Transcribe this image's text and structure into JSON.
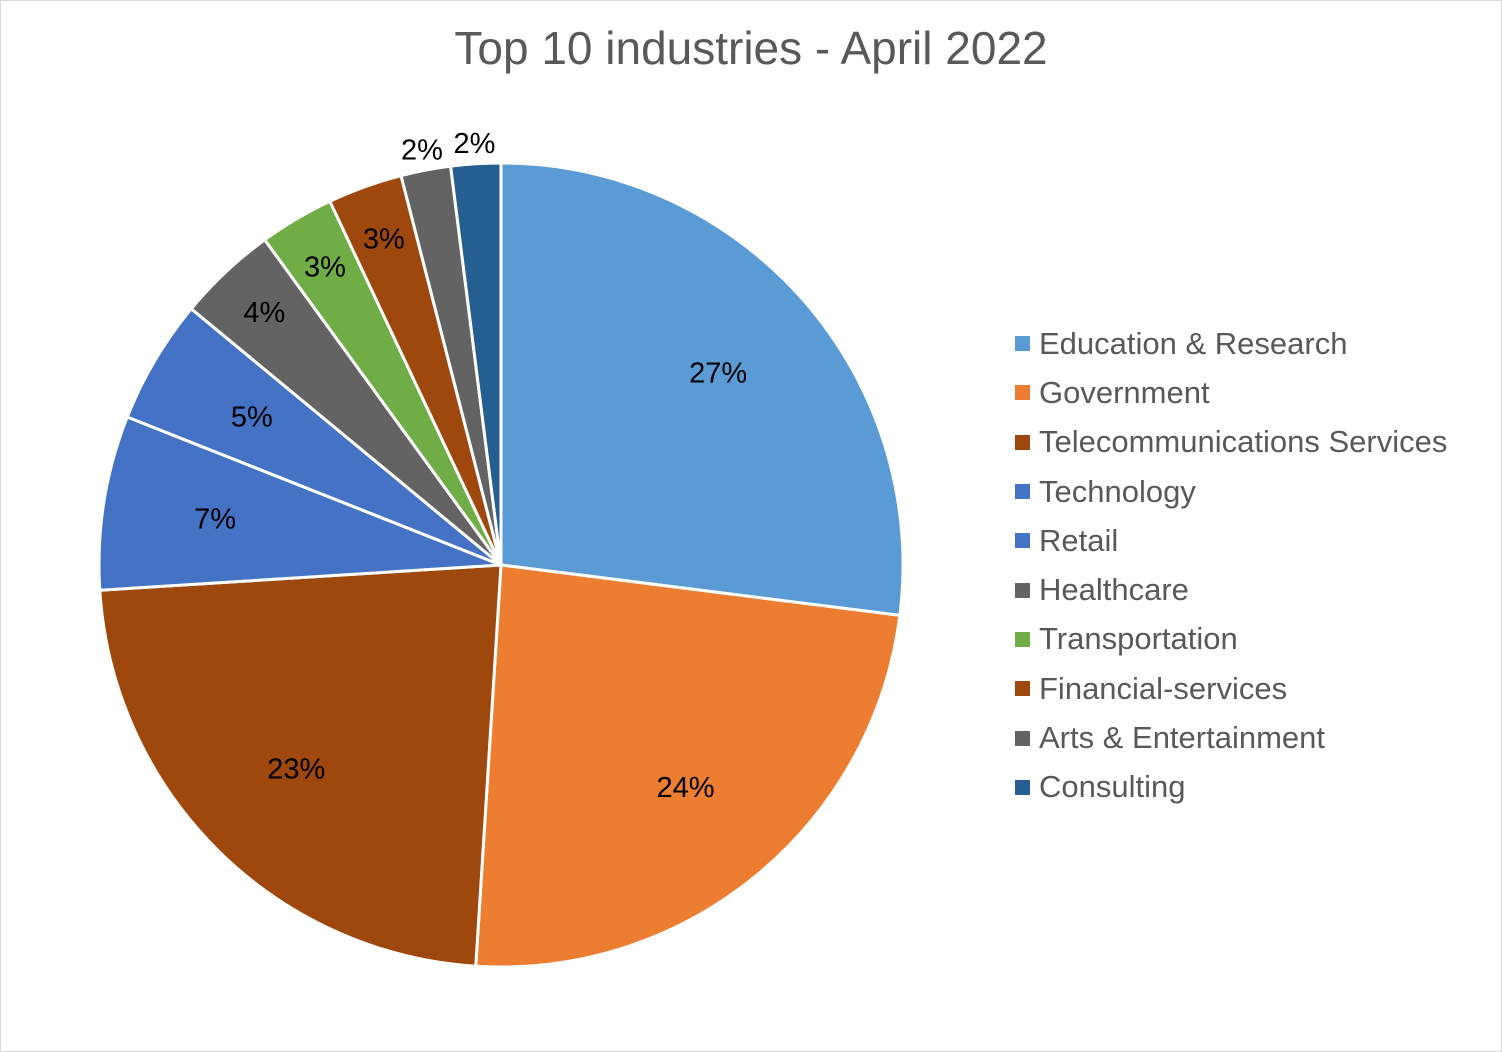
{
  "chart_data": {
    "type": "pie",
    "title": "Top 10 industries - April 2022",
    "legend_position": "right",
    "slices": [
      {
        "label": "Education & Research",
        "value": 27,
        "value_label": "27%",
        "color": "#5B9BD5"
      },
      {
        "label": "Government",
        "value": 24,
        "value_label": "24%",
        "color": "#ED7D31"
      },
      {
        "label": "Telecommunications Services",
        "value": 23,
        "value_label": "23%",
        "color": "#9E480E"
      },
      {
        "label": "Technology",
        "value": 7,
        "value_label": "7%",
        "color": "#4472C4"
      },
      {
        "label": "Retail",
        "value": 5,
        "value_label": "5%",
        "color": "#4472C4"
      },
      {
        "label": "Healthcare",
        "value": 4,
        "value_label": "4%",
        "color": "#636363"
      },
      {
        "label": "Transportation",
        "value": 3,
        "value_label": "3%",
        "color": "#70AD47"
      },
      {
        "label": "Financial-services",
        "value": 3,
        "value_label": "3%",
        "color": "#9E480E"
      },
      {
        "label": "Arts & Entertainment",
        "value": 2,
        "value_label": "2%",
        "color": "#636363"
      },
      {
        "label": "Consulting",
        "value": 2,
        "value_label": "2%",
        "color": "#255E91"
      }
    ]
  }
}
